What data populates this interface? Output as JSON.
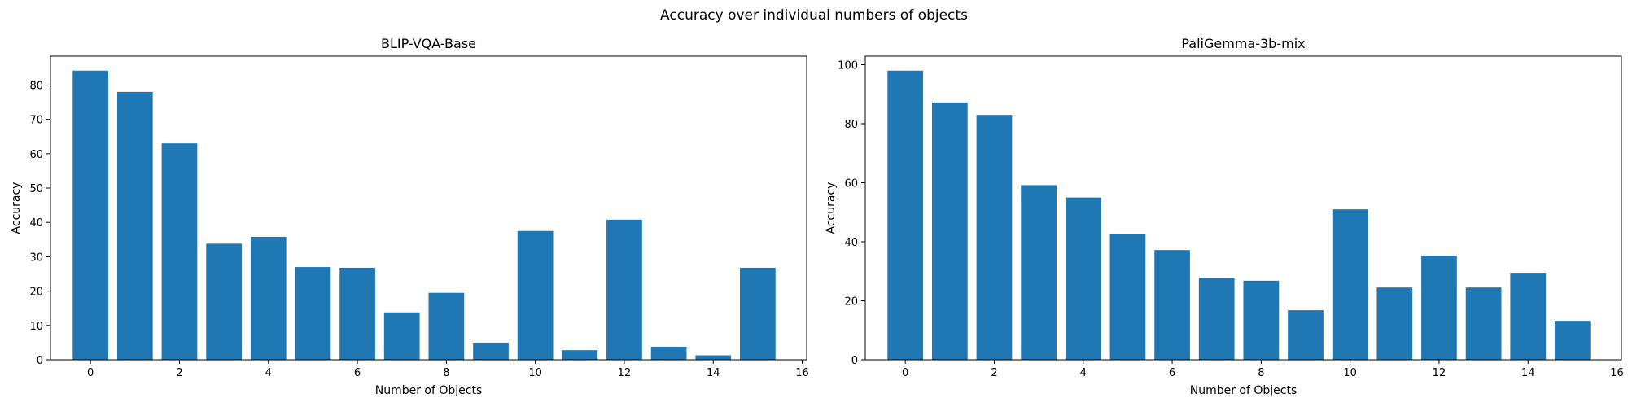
{
  "figure": {
    "suptitle": "Accuracy over individual numbers of objects"
  },
  "chart_data": [
    {
      "type": "bar",
      "title": "BLIP-VQA-Base",
      "xlabel": "Number of Objects",
      "ylabel": "Accuracy",
      "x": [
        0,
        1,
        2,
        3,
        4,
        5,
        6,
        7,
        8,
        9,
        10,
        11,
        12,
        13,
        14,
        15
      ],
      "values": [
        84.2,
        78.0,
        63.0,
        33.8,
        35.8,
        27.0,
        26.8,
        13.8,
        19.5,
        5.0,
        37.5,
        2.8,
        40.8,
        3.8,
        1.3,
        26.8
      ],
      "xlim": [
        -0.9,
        16.1
      ],
      "ylim": [
        0,
        88.4
      ],
      "xticks": [
        0,
        2,
        4,
        6,
        8,
        10,
        12,
        14,
        16
      ],
      "yticks": [
        0,
        10,
        20,
        30,
        40,
        50,
        60,
        70,
        80
      ],
      "bar_width": 0.8,
      "color": "#1f77b4",
      "grid": false,
      "legend": false
    },
    {
      "type": "bar",
      "title": "PaliGemma-3b-mix",
      "xlabel": "Number of Objects",
      "ylabel": "Accuracy",
      "x": [
        0,
        1,
        2,
        3,
        4,
        5,
        6,
        7,
        8,
        9,
        10,
        11,
        12,
        13,
        14,
        15
      ],
      "values": [
        98.0,
        87.2,
        83.0,
        59.2,
        55.0,
        42.5,
        37.2,
        27.8,
        26.8,
        16.8,
        51.0,
        24.5,
        35.3,
        24.5,
        29.5,
        13.2
      ],
      "xlim": [
        -0.9,
        16.1
      ],
      "ylim": [
        0,
        102.9
      ],
      "xticks": [
        0,
        2,
        4,
        6,
        8,
        10,
        12,
        14,
        16
      ],
      "yticks": [
        0,
        20,
        40,
        60,
        80,
        100
      ],
      "bar_width": 0.8,
      "color": "#1f77b4",
      "grid": false,
      "legend": false
    }
  ]
}
